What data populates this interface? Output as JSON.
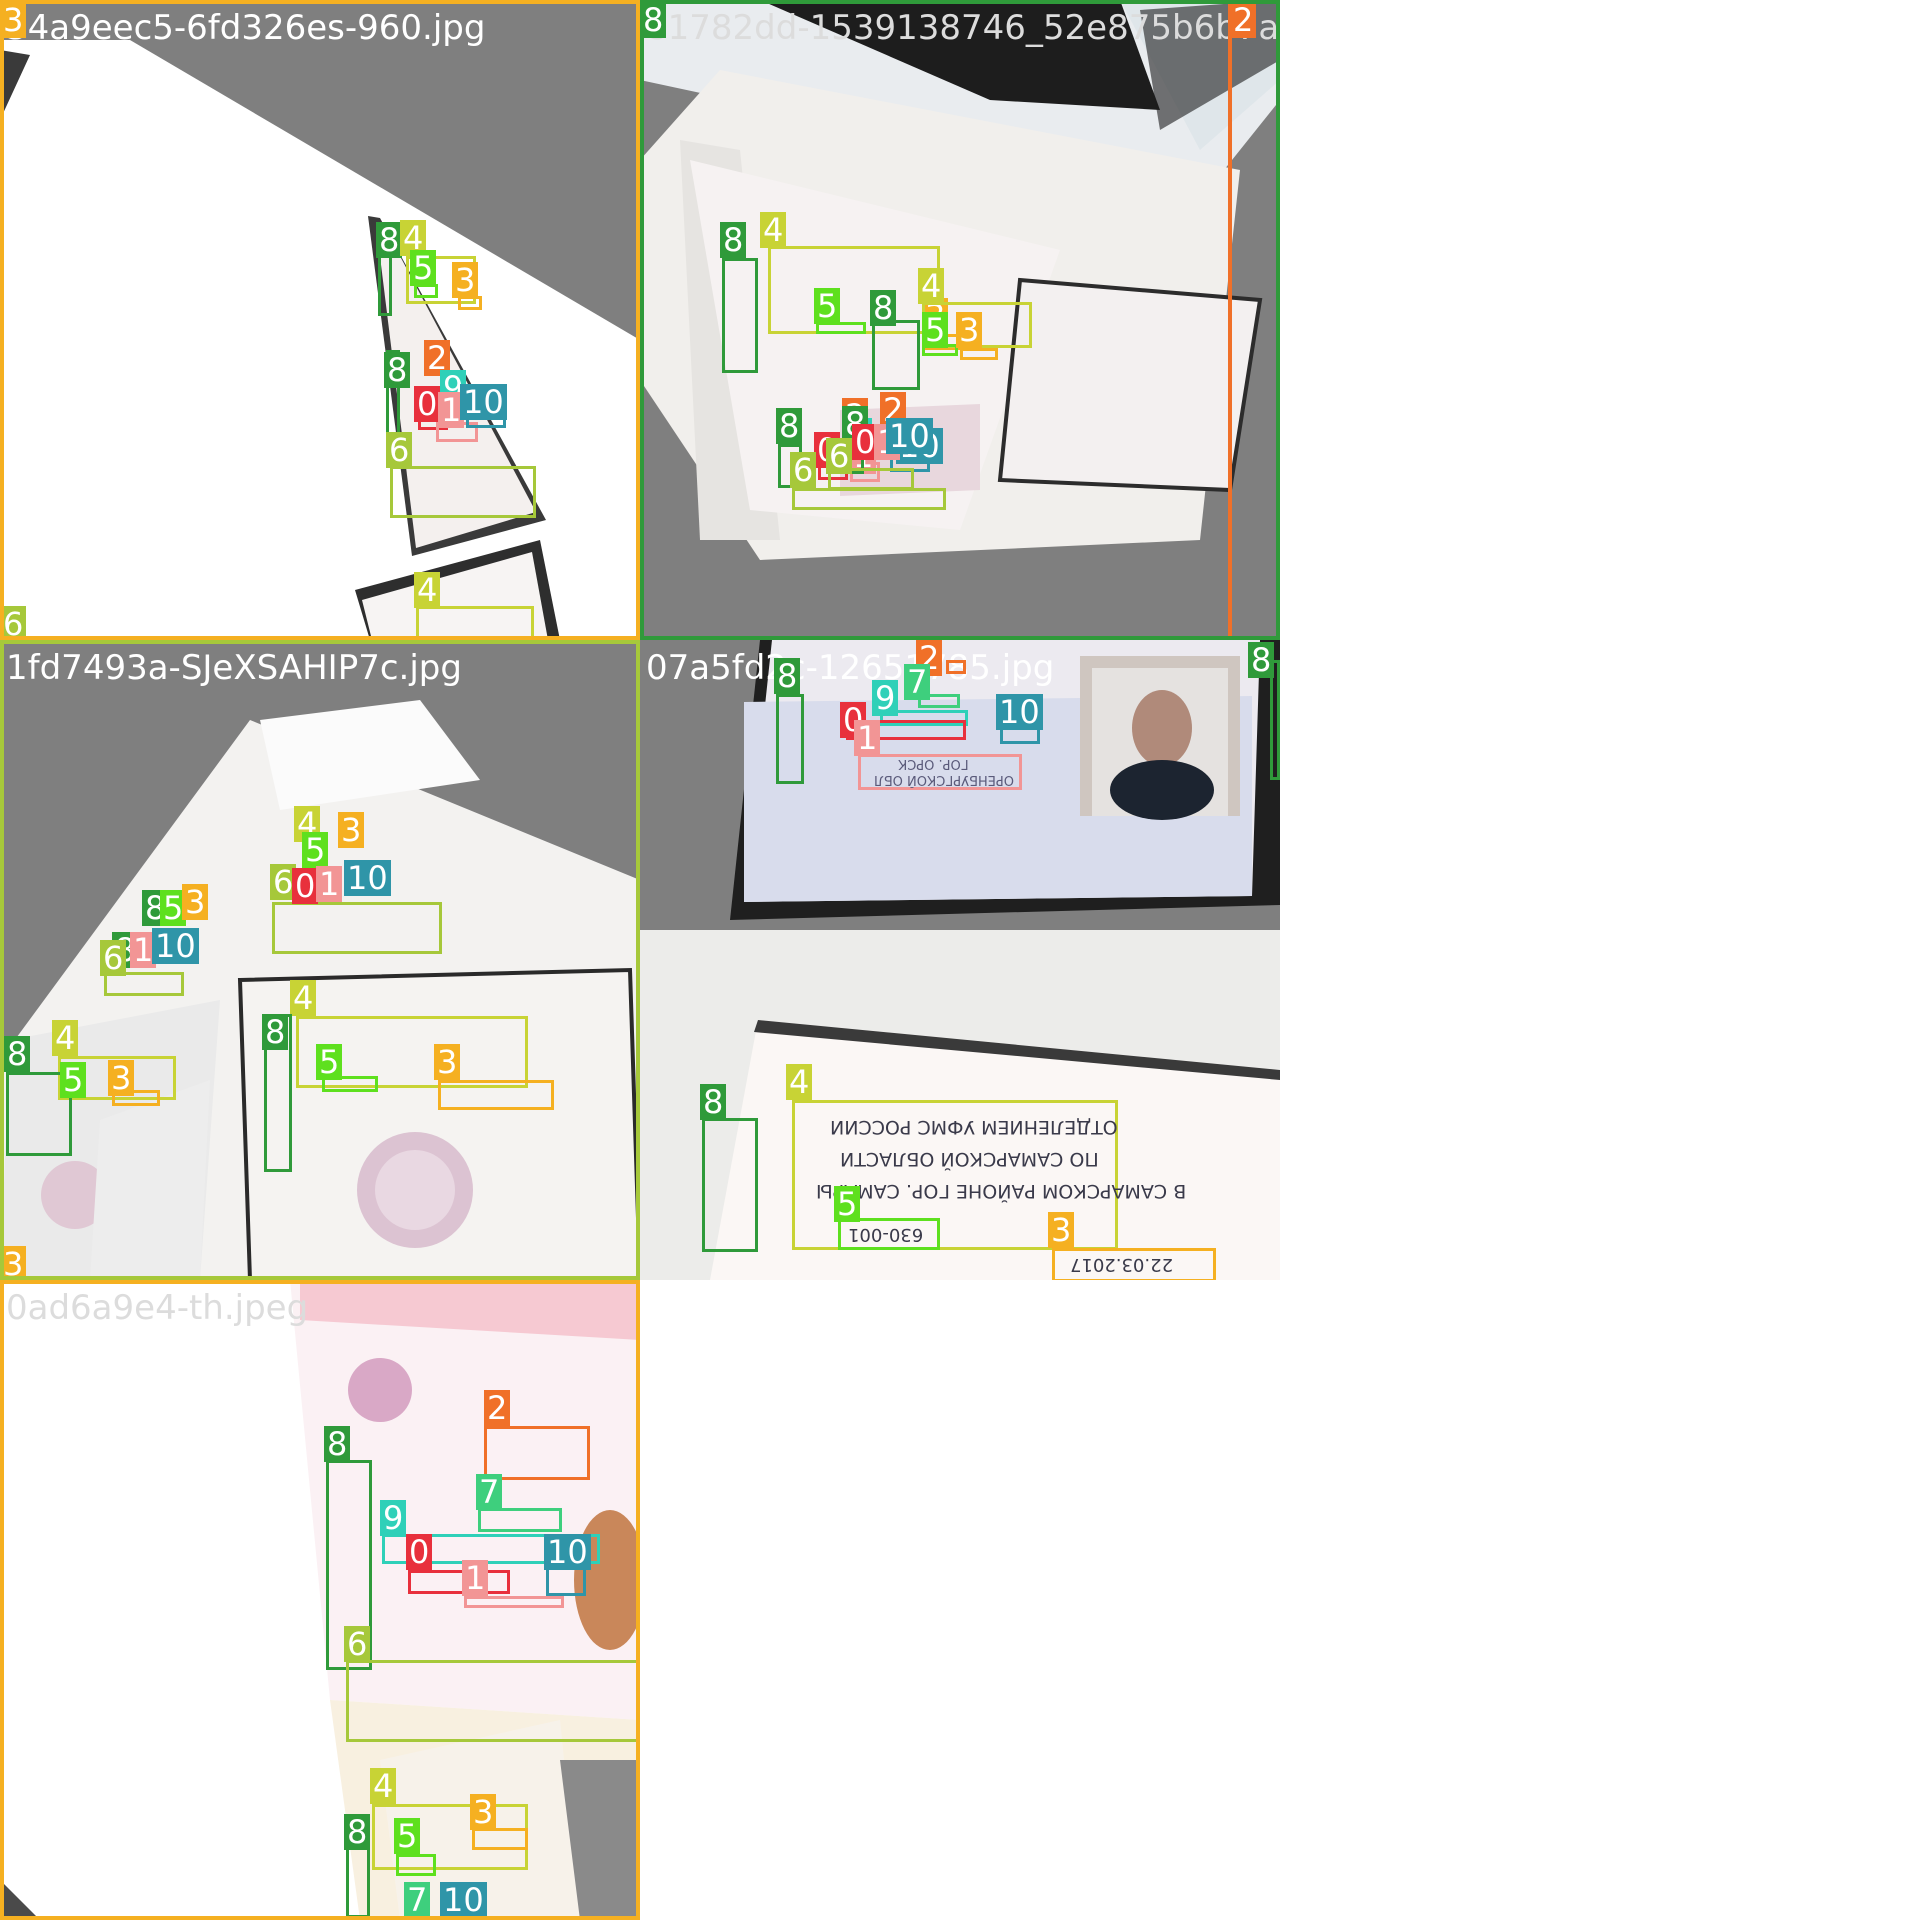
{
  "colors": {
    "0": "#e8303c",
    "1": "#f29595",
    "2": "#f07028",
    "3": "#f5b021",
    "4": "#c8d335",
    "5": "#5ee01e",
    "6": "#a6c83a",
    "7": "#3ecf7d",
    "8": "#2f9a3a",
    "9": "#2fd0b8",
    "10": "#2f95a8"
  },
  "tiles": [
    {
      "filename": "34a9eec5-6fd326es-960.jpg",
      "corner_label": "3",
      "bottom_label": "6",
      "labels": [
        {
          "cls": "8",
          "text": "8"
        },
        {
          "cls": "4",
          "text": "4"
        },
        {
          "cls": "5",
          "text": "5"
        },
        {
          "cls": "3",
          "text": "3"
        },
        {
          "cls": "8",
          "text": "8"
        },
        {
          "cls": "2",
          "text": "2"
        },
        {
          "cls": "9",
          "text": "9"
        },
        {
          "cls": "0",
          "text": "0"
        },
        {
          "cls": "1",
          "text": "1"
        },
        {
          "cls": "10",
          "text": "10"
        },
        {
          "cls": "6",
          "text": "6"
        },
        {
          "cls": "4",
          "text": "4"
        }
      ]
    },
    {
      "filename": "81782dd-1539138746_52e875b6b7a.jpg",
      "corner_label": "8",
      "right_label": "2",
      "labels": [
        {
          "cls": "8",
          "text": "8"
        },
        {
          "cls": "4",
          "text": "4"
        },
        {
          "cls": "5",
          "text": "5"
        },
        {
          "cls": "3",
          "text": "3"
        },
        {
          "cls": "8",
          "text": "8"
        },
        {
          "cls": "2",
          "text": "2"
        },
        {
          "cls": "9",
          "text": "9"
        },
        {
          "cls": "0",
          "text": "0"
        },
        {
          "cls": "1",
          "text": "1"
        },
        {
          "cls": "10",
          "text": "10"
        },
        {
          "cls": "6",
          "text": "6"
        },
        {
          "cls": "8",
          "text": "8"
        },
        {
          "cls": "4",
          "text": "4"
        },
        {
          "cls": "5",
          "text": "5"
        },
        {
          "cls": "3",
          "text": "3"
        },
        {
          "cls": "8",
          "text": "8"
        },
        {
          "cls": "2",
          "text": "2"
        },
        {
          "cls": "0",
          "text": "0"
        },
        {
          "cls": "1",
          "text": "1"
        },
        {
          "cls": "10",
          "text": "10"
        },
        {
          "cls": "6",
          "text": "6"
        }
      ]
    },
    {
      "filename": "1fd7493a-SJeXSAHIP7c.jpg",
      "corner_label": "3",
      "labels": [
        {
          "cls": "4",
          "text": "4"
        },
        {
          "cls": "5",
          "text": "5"
        },
        {
          "cls": "3",
          "text": "3"
        },
        {
          "cls": "6",
          "text": "6"
        },
        {
          "cls": "0",
          "text": "0"
        },
        {
          "cls": "1",
          "text": "1"
        },
        {
          "cls": "10",
          "text": "10"
        },
        {
          "cls": "8",
          "text": "8"
        },
        {
          "cls": "5",
          "text": "5"
        },
        {
          "cls": "3",
          "text": "3"
        },
        {
          "cls": "8",
          "text": "8"
        },
        {
          "cls": "1",
          "text": "1"
        },
        {
          "cls": "10",
          "text": "10"
        },
        {
          "cls": "6",
          "text": "6"
        },
        {
          "cls": "4",
          "text": "4"
        },
        {
          "cls": "8",
          "text": "8"
        },
        {
          "cls": "5",
          "text": "5"
        },
        {
          "cls": "3",
          "text": "3"
        },
        {
          "cls": "4",
          "text": "4"
        },
        {
          "cls": "8",
          "text": "8"
        },
        {
          "cls": "5",
          "text": "5"
        },
        {
          "cls": "3",
          "text": "3"
        }
      ]
    },
    {
      "filename": "07a5fd2c-12651785.jpg",
      "corner_label": "8",
      "labels": [
        {
          "cls": "2",
          "text": "2"
        },
        {
          "cls": "8",
          "text": "8"
        },
        {
          "cls": "7",
          "text": "7"
        },
        {
          "cls": "9",
          "text": "9"
        },
        {
          "cls": "0",
          "text": "0"
        },
        {
          "cls": "10",
          "text": "10"
        },
        {
          "cls": "1",
          "text": "1"
        },
        {
          "cls": "8",
          "text": "8"
        },
        {
          "cls": "4",
          "text": "4"
        },
        {
          "cls": "5",
          "text": "5"
        },
        {
          "cls": "3",
          "text": "3"
        }
      ],
      "doc_text": {
        "field_lines": [
          "ОТДЕЛЕНИЕМ УФМС РОССИИ",
          "ПО САМАРСКОЙ ОБЛАСТИ",
          "В САМАРСКОМ РАЙОНЕ ГОР. САМАРЫ"
        ],
        "code": "630-001",
        "date": "22.03.2017",
        "place": "ГОР. ОРСК",
        "region": "ОРЕНБУРГСКОЙ ОБЛ"
      }
    },
    {
      "filename": "0ad6a9e4-th.jpeg",
      "labels": [
        {
          "cls": "2",
          "text": "2"
        },
        {
          "cls": "8",
          "text": "8"
        },
        {
          "cls": "7",
          "text": "7"
        },
        {
          "cls": "9",
          "text": "9"
        },
        {
          "cls": "0",
          "text": "0"
        },
        {
          "cls": "10",
          "text": "10"
        },
        {
          "cls": "1",
          "text": "1"
        },
        {
          "cls": "6",
          "text": "6"
        },
        {
          "cls": "4",
          "text": "4"
        },
        {
          "cls": "3",
          "text": "3"
        },
        {
          "cls": "8",
          "text": "8"
        },
        {
          "cls": "5",
          "text": "5"
        },
        {
          "cls": "7",
          "text": "7"
        },
        {
          "cls": "10",
          "text": "10"
        }
      ]
    }
  ]
}
